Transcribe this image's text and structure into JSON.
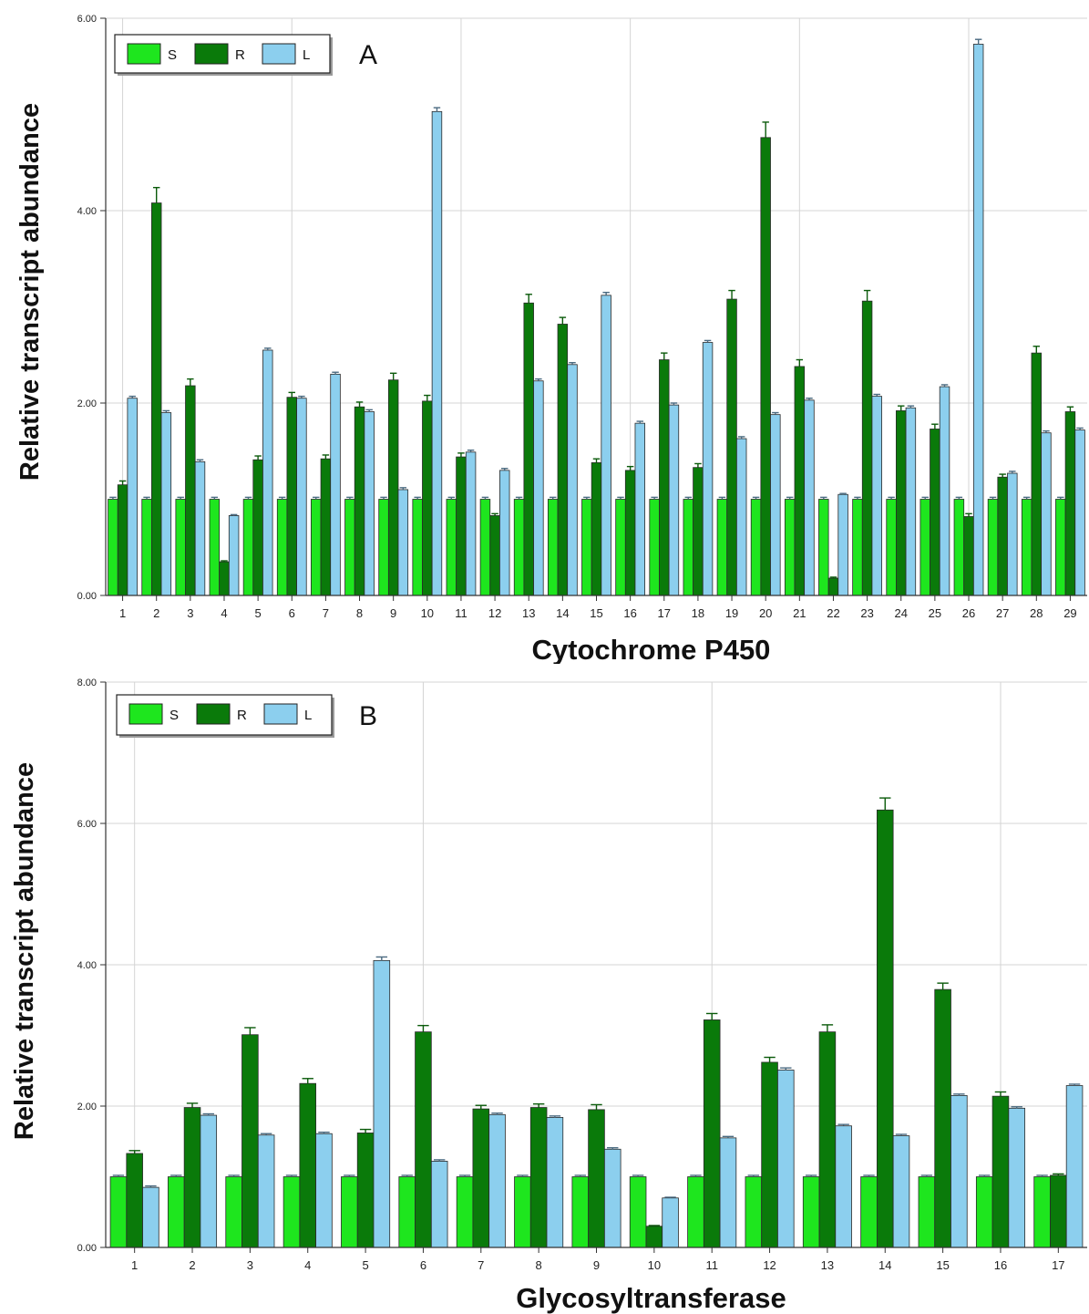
{
  "colors": {
    "S": "#1ee61e",
    "R": "#0a7a0a",
    "L": "#8ccfee",
    "grid": "#d4d4d4",
    "axis": "#333333",
    "errorbar": "#0a5a0a"
  },
  "chart_data": [
    {
      "type": "bar",
      "panel_label": "A",
      "xlabel": "Cytochrome P450",
      "ylabel": "Relative transcript abundance",
      "ylim": [
        0,
        6
      ],
      "yticks": [
        "0.00",
        "2.00",
        "4.00",
        "6.00"
      ],
      "grid": true,
      "legend": "top-left",
      "categories": [
        "1",
        "2",
        "3",
        "4",
        "5",
        "6",
        "7",
        "8",
        "9",
        "10",
        "11",
        "12",
        "13",
        "14",
        "15",
        "16",
        "17",
        "18",
        "19",
        "20",
        "21",
        "22",
        "23",
        "24",
        "25",
        "26",
        "27",
        "28",
        "29"
      ],
      "series": [
        {
          "name": "S",
          "values": [
            1,
            1,
            1,
            1,
            1,
            1,
            1,
            1,
            1,
            1,
            1,
            1,
            1,
            1,
            1,
            1,
            1,
            1,
            1,
            1,
            1,
            1,
            1,
            1,
            1,
            1,
            1,
            1,
            1
          ],
          "errors": [
            0.02,
            0.02,
            0.02,
            0.02,
            0.02,
            0.02,
            0.02,
            0.02,
            0.02,
            0.02,
            0.02,
            0.02,
            0.02,
            0.02,
            0.02,
            0.02,
            0.02,
            0.02,
            0.02,
            0.02,
            0.02,
            0.02,
            0.02,
            0.02,
            0.02,
            0.02,
            0.02,
            0.02,
            0.02
          ]
        },
        {
          "name": "R",
          "values": [
            1.15,
            4.08,
            2.18,
            0.35,
            1.41,
            2.06,
            1.42,
            1.96,
            2.24,
            2.02,
            1.44,
            0.83,
            3.04,
            2.82,
            1.38,
            1.3,
            2.45,
            1.33,
            3.08,
            4.76,
            2.38,
            0.18,
            3.06,
            1.92,
            1.73,
            0.82,
            1.23,
            2.52,
            1.91
          ],
          "errors": [
            0.04,
            0.16,
            0.07,
            0.01,
            0.04,
            0.05,
            0.04,
            0.05,
            0.07,
            0.06,
            0.04,
            0.02,
            0.09,
            0.07,
            0.04,
            0.04,
            0.07,
            0.04,
            0.09,
            0.16,
            0.07,
            0.01,
            0.11,
            0.05,
            0.05,
            0.03,
            0.03,
            0.07,
            0.05
          ]
        },
        {
          "name": "L",
          "values": [
            2.05,
            1.9,
            1.39,
            0.83,
            2.55,
            2.05,
            2.3,
            1.91,
            1.1,
            5.03,
            1.49,
            1.3,
            2.23,
            2.4,
            3.12,
            1.79,
            1.98,
            2.63,
            1.63,
            1.88,
            2.03,
            1.05,
            2.07,
            1.95,
            2.17,
            5.73,
            1.27,
            1.69,
            1.72
          ],
          "errors": [
            0.02,
            0.02,
            0.02,
            0.01,
            0.02,
            0.02,
            0.02,
            0.02,
            0.02,
            0.04,
            0.02,
            0.02,
            0.02,
            0.02,
            0.03,
            0.02,
            0.02,
            0.02,
            0.02,
            0.02,
            0.02,
            0.01,
            0.02,
            0.02,
            0.02,
            0.05,
            0.02,
            0.02,
            0.02
          ]
        }
      ]
    },
    {
      "type": "bar",
      "panel_label": "B",
      "xlabel": "Glycosyltransferase",
      "ylabel": "Relative transcript abundance",
      "ylim": [
        0,
        8
      ],
      "yticks": [
        "0.00",
        "2.00",
        "4.00",
        "6.00",
        "8.00"
      ],
      "grid": true,
      "legend": "top-left",
      "categories": [
        "1",
        "2",
        "3",
        "4",
        "5",
        "6",
        "7",
        "8",
        "9",
        "10",
        "11",
        "12",
        "13",
        "14",
        "15",
        "16",
        "17"
      ],
      "series": [
        {
          "name": "S",
          "values": [
            1,
            1,
            1,
            1,
            1,
            1,
            1,
            1,
            1,
            1,
            1,
            1,
            1,
            1,
            1,
            1,
            1
          ],
          "errors": [
            0.02,
            0.02,
            0.02,
            0.02,
            0.02,
            0.02,
            0.02,
            0.02,
            0.02,
            0.02,
            0.02,
            0.02,
            0.02,
            0.02,
            0.02,
            0.02,
            0.02
          ]
        },
        {
          "name": "R",
          "values": [
            1.33,
            1.98,
            3.01,
            2.32,
            1.62,
            3.05,
            1.96,
            1.98,
            1.95,
            0.3,
            3.22,
            2.62,
            3.05,
            6.19,
            3.65,
            2.14,
            1.02
          ],
          "errors": [
            0.04,
            0.06,
            0.1,
            0.07,
            0.05,
            0.09,
            0.05,
            0.05,
            0.07,
            0.01,
            0.09,
            0.07,
            0.1,
            0.17,
            0.09,
            0.06,
            0.02
          ]
        },
        {
          "name": "L",
          "values": [
            0.85,
            1.87,
            1.59,
            1.61,
            4.06,
            1.22,
            1.88,
            1.84,
            1.39,
            0.7,
            1.55,
            2.51,
            1.72,
            1.58,
            2.15,
            1.97,
            2.29
          ],
          "errors": [
            0.02,
            0.02,
            0.02,
            0.02,
            0.05,
            0.02,
            0.02,
            0.02,
            0.02,
            0.01,
            0.02,
            0.03,
            0.02,
            0.02,
            0.02,
            0.02,
            0.02
          ]
        }
      ]
    }
  ]
}
